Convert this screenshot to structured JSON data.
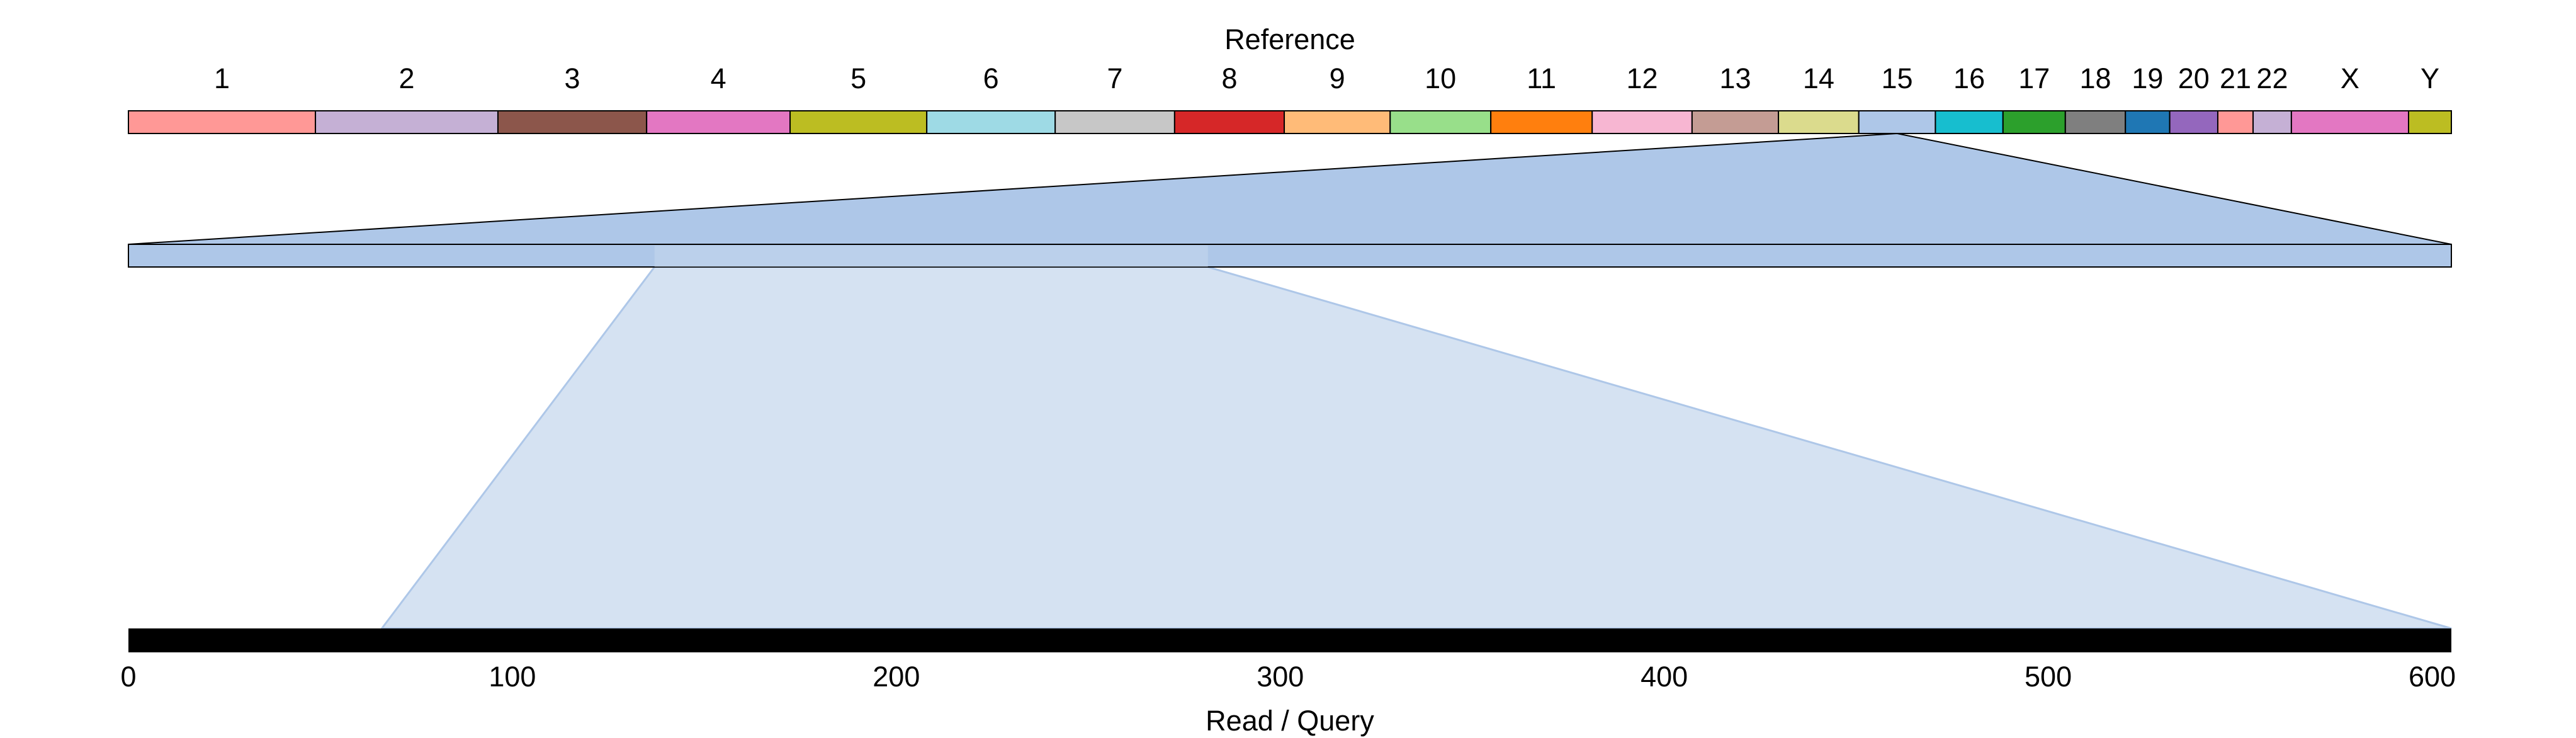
{
  "reference_title": "Reference",
  "query_title": "Read / Query",
  "chromosomes": [
    {
      "label": "1",
      "color": "#FF9896",
      "length": 249
    },
    {
      "label": "2",
      "color": "#C5B0D5",
      "length": 243
    },
    {
      "label": "3",
      "color": "#8C564B",
      "length": 198
    },
    {
      "label": "4",
      "color": "#E377C2",
      "length": 191
    },
    {
      "label": "5",
      "color": "#BCBD22",
      "length": 182
    },
    {
      "label": "6",
      "color": "#9EDAE5",
      "length": 171
    },
    {
      "label": "7",
      "color": "#C7C7C7",
      "length": 159
    },
    {
      "label": "8",
      "color": "#D62728",
      "length": 146
    },
    {
      "label": "9",
      "color": "#FFBB78",
      "length": 141
    },
    {
      "label": "10",
      "color": "#98DF8A",
      "length": 134
    },
    {
      "label": "11",
      "color": "#FF7F0E",
      "length": 135
    },
    {
      "label": "12",
      "color": "#F7B6D2",
      "length": 133
    },
    {
      "label": "13",
      "color": "#C49C94",
      "length": 115
    },
    {
      "label": "14",
      "color": "#DBDB8D",
      "length": 107
    },
    {
      "label": "15",
      "color": "#AEC7E8",
      "length": 102
    },
    {
      "label": "16",
      "color": "#17BECF",
      "length": 90
    },
    {
      "label": "17",
      "color": "#2CA02C",
      "length": 83
    },
    {
      "label": "18",
      "color": "#7F7F7F",
      "length": 80
    },
    {
      "label": "19",
      "color": "#1F77B4",
      "length": 59
    },
    {
      "label": "20",
      "color": "#9467BD",
      "length": 64
    },
    {
      "label": "21",
      "color": "#FF9896",
      "length": 47
    },
    {
      "label": "22",
      "color": "#C5B0D5",
      "length": 51
    },
    {
      "label": "X",
      "color": "#E377C2",
      "length": 156
    },
    {
      "label": "Y",
      "color": "#BCBD22",
      "length": 57
    }
  ],
  "zoomed_chromosome_index": 14,
  "zoomed_chromosome_length": 102,
  "alignment": {
    "reference_start": 23.1,
    "reference_end": 47.4,
    "query_start": 66,
    "query_end": 605
  },
  "query_axis": {
    "min": 0,
    "max": 605,
    "ticks": [
      "0",
      "100",
      "200",
      "300",
      "400",
      "500",
      "600"
    ]
  },
  "colors": {
    "zoom_fill": "#AEC7E8",
    "alignment_fill": "#D5E2F2",
    "alignment_stroke": "#AEC7E8",
    "query_bar": "#000000",
    "outline": "#000000"
  }
}
